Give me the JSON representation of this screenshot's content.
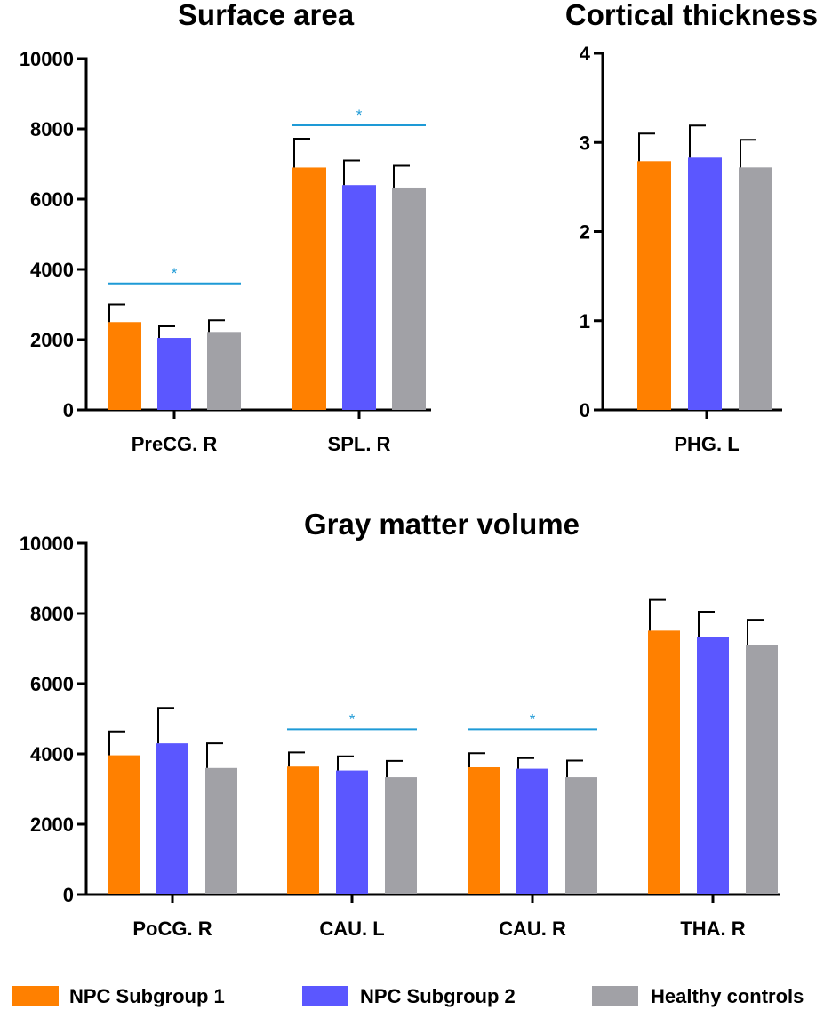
{
  "colors": {
    "npc1": "#ff8000",
    "npc2": "#5b57ff",
    "hc": "#a1a1a6",
    "significance": "#1e9ad6",
    "axis": "#000000"
  },
  "legend": [
    {
      "label": "NPC Subgroup 1",
      "color_key": "npc1"
    },
    {
      "label": "NPC Subgroup 2",
      "color_key": "npc2"
    },
    {
      "label": "Healthy controls",
      "color_key": "hc"
    }
  ],
  "chart_data": [
    {
      "id": "surface-area",
      "type": "bar",
      "title": "Surface area",
      "ylim": [
        0,
        10000
      ],
      "yticks": [
        0,
        2000,
        4000,
        6000,
        8000,
        10000
      ],
      "categories": [
        "PreCG. R",
        "SPL. R"
      ],
      "series": [
        {
          "name": "NPC Subgroup 1",
          "values": [
            2500,
            6900
          ],
          "errors": [
            500,
            820
          ]
        },
        {
          "name": "NPC Subgroup 2",
          "values": [
            2050,
            6400
          ],
          "errors": [
            330,
            700
          ]
        },
        {
          "name": "Healthy controls",
          "values": [
            2220,
            6330
          ],
          "errors": [
            330,
            620
          ]
        }
      ],
      "significance": [
        {
          "category_index": 0,
          "y": 3600,
          "label": "*"
        },
        {
          "category_index": 1,
          "y": 8100,
          "label": "*"
        }
      ]
    },
    {
      "id": "cortical-thickness",
      "type": "bar",
      "title": "Cortical thickness",
      "ylim": [
        0,
        4
      ],
      "yticks": [
        0,
        1,
        2,
        3,
        4
      ],
      "categories": [
        "PHG. L"
      ],
      "series": [
        {
          "name": "NPC Subgroup 1",
          "values": [
            2.79
          ],
          "errors": [
            0.31
          ]
        },
        {
          "name": "NPC Subgroup 2",
          "values": [
            2.83
          ],
          "errors": [
            0.36
          ]
        },
        {
          "name": "Healthy controls",
          "values": [
            2.72
          ],
          "errors": [
            0.31
          ]
        }
      ],
      "significance": []
    },
    {
      "id": "gray-matter-volume",
      "type": "bar",
      "title": "Gray matter volume",
      "ylim": [
        0,
        10000
      ],
      "yticks": [
        0,
        2000,
        4000,
        6000,
        8000,
        10000
      ],
      "categories": [
        "PoCG. R",
        "CAU. L",
        "CAU. R",
        "THA. R"
      ],
      "series": [
        {
          "name": "NPC Subgroup 1",
          "values": [
            3960,
            3640,
            3620,
            7510
          ],
          "errors": [
            680,
            400,
            400,
            880
          ]
        },
        {
          "name": "NPC Subgroup 2",
          "values": [
            4300,
            3530,
            3580,
            7320
          ],
          "errors": [
            1010,
            400,
            300,
            730
          ]
        },
        {
          "name": "Healthy controls",
          "values": [
            3600,
            3340,
            3340,
            7090
          ],
          "errors": [
            700,
            460,
            470,
            730
          ]
        }
      ],
      "significance": [
        {
          "category_index": 1,
          "y": 4700,
          "label": "*"
        },
        {
          "category_index": 2,
          "y": 4700,
          "label": "*"
        }
      ]
    }
  ]
}
